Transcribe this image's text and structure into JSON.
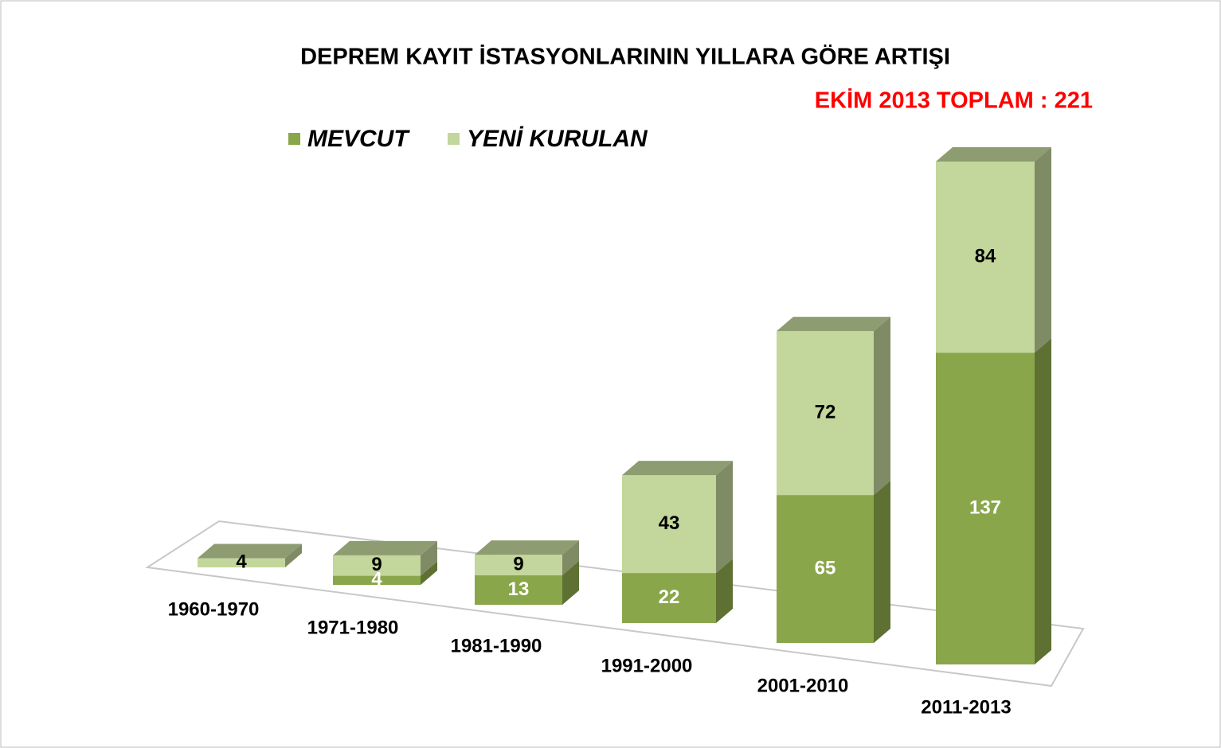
{
  "chart_data": {
    "type": "bar3d_stacked",
    "title": "DEPREM KAYIT İSTASYONLARININ YILLARA GÖRE ARTIŞI",
    "subtitle": "EKİM 2013 TOPLAM : 221",
    "categories": [
      "1960-1970",
      "1971-1980",
      "1981-1990",
      "1991-2000",
      "2001-2010",
      "2011-2013"
    ],
    "series": [
      {
        "name": "MEVCUT",
        "color": "#8aa64b",
        "values": [
          null,
          4,
          13,
          22,
          65,
          137
        ]
      },
      {
        "name": "YENİ KURULAN",
        "color": "#c3d69b",
        "values": [
          4,
          9,
          9,
          43,
          72,
          84
        ]
      }
    ]
  }
}
